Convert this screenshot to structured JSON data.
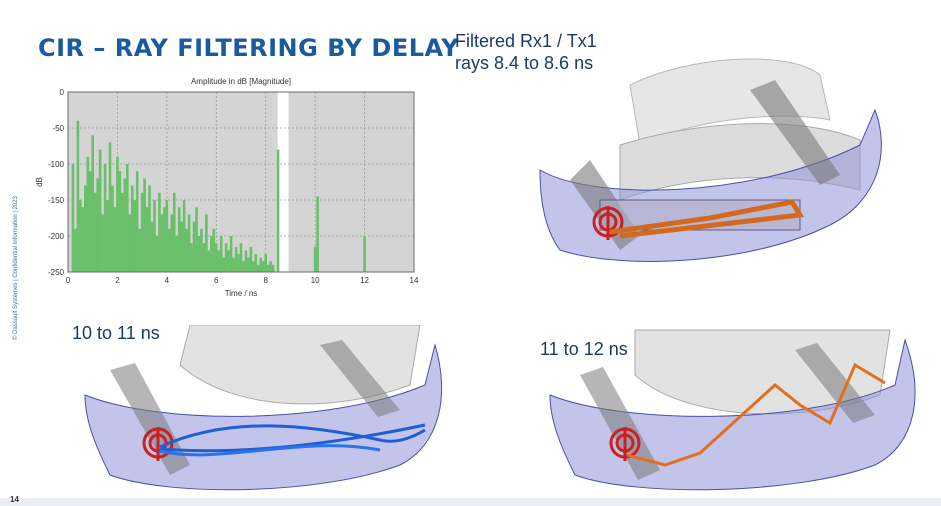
{
  "slide": {
    "title": "CIR – RAY FILTERING BY DELAY",
    "side_text": "© Dassault Systèmes | Confidential Information | 2023",
    "page_number": "14"
  },
  "captions": {
    "top_right_line1": "Filtered Rx1 / Tx1",
    "top_right_line2": "rays 8.4 to 8.6 ns",
    "bottom_left": "10 to 11 ns",
    "bottom_right": "11 to 12 ns"
  },
  "scene_colors": {
    "top_right_rays": "#d2691e",
    "bottom_left_rays": "#1f5fd6",
    "bottom_right_rays": "#e07020",
    "bumper": "#8f94d8",
    "antenna": "#cc1f1f"
  },
  "chart_data": {
    "type": "bar",
    "title": "Amplitude in dB [Magnitude]",
    "xlabel": "Time / ns",
    "ylabel": "dB",
    "xlim": [
      0,
      14
    ],
    "ylim": [
      -250,
      0
    ],
    "xticks": [
      0,
      2,
      4,
      6,
      8,
      10,
      12,
      14
    ],
    "yticks": [
      0,
      -50,
      -100,
      -150,
      -200,
      -250
    ],
    "grid": true,
    "highlight_band": [
      8.4,
      8.6
    ],
    "bar_color": "#6abf6a",
    "x": [
      0.2,
      0.3,
      0.4,
      0.5,
      0.6,
      0.7,
      0.8,
      0.9,
      1.0,
      1.1,
      1.2,
      1.3,
      1.4,
      1.5,
      1.6,
      1.7,
      1.8,
      1.9,
      2.0,
      2.1,
      2.2,
      2.3,
      2.4,
      2.5,
      2.6,
      2.7,
      2.8,
      2.9,
      3.0,
      3.1,
      3.2,
      3.3,
      3.4,
      3.5,
      3.6,
      3.7,
      3.8,
      3.9,
      4.0,
      4.1,
      4.2,
      4.3,
      4.4,
      4.5,
      4.6,
      4.7,
      4.8,
      4.9,
      5.0,
      5.1,
      5.2,
      5.3,
      5.4,
      5.5,
      5.6,
      5.7,
      5.8,
      5.9,
      6.0,
      6.1,
      6.2,
      6.3,
      6.4,
      6.5,
      6.6,
      6.7,
      6.8,
      6.9,
      7.0,
      7.1,
      7.2,
      7.3,
      7.4,
      7.5,
      7.6,
      7.7,
      7.8,
      7.9,
      8.0,
      8.1,
      8.2,
      8.3,
      8.5,
      10.0,
      10.1,
      12.0
    ],
    "values": [
      -100,
      -190,
      -40,
      -150,
      -160,
      -130,
      -90,
      -110,
      -60,
      -140,
      -120,
      -80,
      -170,
      -100,
      -150,
      -70,
      -130,
      -160,
      -90,
      -110,
      -140,
      -120,
      -100,
      -170,
      -130,
      -150,
      -110,
      -190,
      -140,
      -120,
      -160,
      -130,
      -180,
      -150,
      -200,
      -140,
      -170,
      -160,
      -150,
      -190,
      -170,
      -140,
      -200,
      -160,
      -180,
      -150,
      -190,
      -170,
      -210,
      -180,
      -160,
      -200,
      -190,
      -210,
      -170,
      -220,
      -200,
      -190,
      -210,
      -220,
      -200,
      -230,
      -210,
      -220,
      -200,
      -230,
      -215,
      -225,
      -210,
      -235,
      -220,
      -230,
      -215,
      -235,
      -225,
      -240,
      -230,
      -235,
      -225,
      -240,
      -235,
      -240,
      -80,
      -215,
      -145,
      -200
    ]
  }
}
